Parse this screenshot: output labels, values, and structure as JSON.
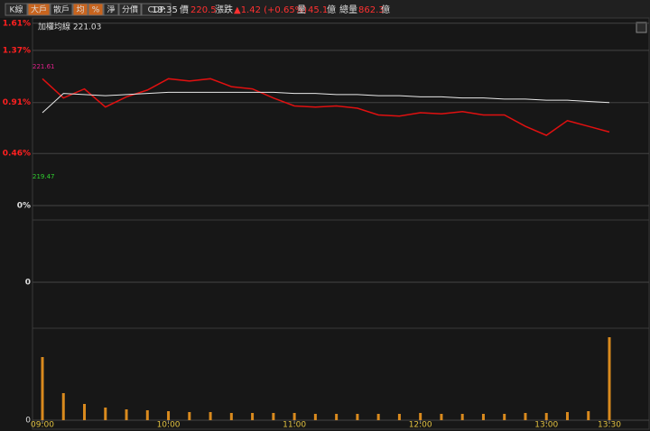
{
  "toolbar": {
    "buttons": [
      {
        "label": "K線",
        "active": false
      },
      {
        "label": "大戶",
        "active": true
      },
      {
        "label": "散戶",
        "active": false
      },
      {
        "label": "均",
        "active": true
      },
      {
        "label": "%",
        "active": true
      },
      {
        "label": "淨",
        "active": false
      },
      {
        "label": "分價",
        "active": false
      },
      {
        "label": "CDP",
        "active": false
      }
    ],
    "time": "13:35",
    "price_label": "價",
    "price": "220.5",
    "change_label": "漲跌",
    "change": "▲1.42 (+0.65%)",
    "volume_label": "量",
    "volume": "45.1",
    "volume_unit": "億",
    "total_label": "總量",
    "total": "862.3",
    "total_unit": "億"
  },
  "chart_data": [
    {
      "type": "line",
      "title": "加權均線 221.03",
      "high_label": "221.61",
      "low_label": "219.47",
      "categories": [
        "09:00",
        null,
        null,
        null,
        null,
        null,
        "10:00",
        null,
        null,
        null,
        null,
        null,
        "11:00",
        null,
        null,
        null,
        null,
        null,
        "12:00",
        null,
        null,
        null,
        null,
        null,
        "13:00",
        null,
        null,
        "13:30"
      ],
      "series": [
        {
          "color": "#e01010",
          "values": [
            1.12,
            0.95,
            1.03,
            0.87,
            0.96,
            1.02,
            1.12,
            1.1,
            1.12,
            1.05,
            1.03,
            0.95,
            0.88,
            0.87,
            0.88,
            0.86,
            0.8,
            0.79,
            0.82,
            0.81,
            0.83,
            0.8,
            0.8,
            0.7,
            0.62,
            0.75,
            0.7,
            0.65
          ]
        },
        {
          "color": "#e8e8e8",
          "values": [
            0.82,
            0.99,
            0.98,
            0.97,
            0.98,
            0.99,
            1.0,
            1.0,
            1.0,
            1.0,
            1.0,
            1.0,
            0.99,
            0.99,
            0.98,
            0.98,
            0.97,
            0.97,
            0.96,
            0.96,
            0.95,
            0.95,
            0.94,
            0.94,
            0.93,
            0.93,
            0.92,
            0.91
          ]
        }
      ],
      "ylim": [
        0,
        1.64
      ],
      "yticks": [
        {
          "value": 0,
          "label": "0%"
        },
        {
          "value": 0.46,
          "label": "0.46%"
        },
        {
          "value": 0.91,
          "label": "0.91%"
        },
        {
          "value": 1.37,
          "label": "1.37%"
        },
        {
          "value": 1.61,
          "label": "1.61%"
        }
      ]
    },
    {
      "type": "line",
      "ylim": [
        -1,
        1
      ],
      "yticks": [
        0
      ]
    },
    {
      "type": "bar",
      "color": "#d98a1e",
      "values": [
        70,
        30,
        18,
        14,
        12,
        11,
        10,
        9,
        9,
        8,
        8,
        8,
        8,
        7,
        7,
        7,
        7,
        7,
        8,
        7,
        7,
        7,
        7,
        8,
        8,
        9,
        10,
        92
      ],
      "ylim": [
        0,
        100
      ],
      "yticks": [
        0
      ]
    }
  ]
}
